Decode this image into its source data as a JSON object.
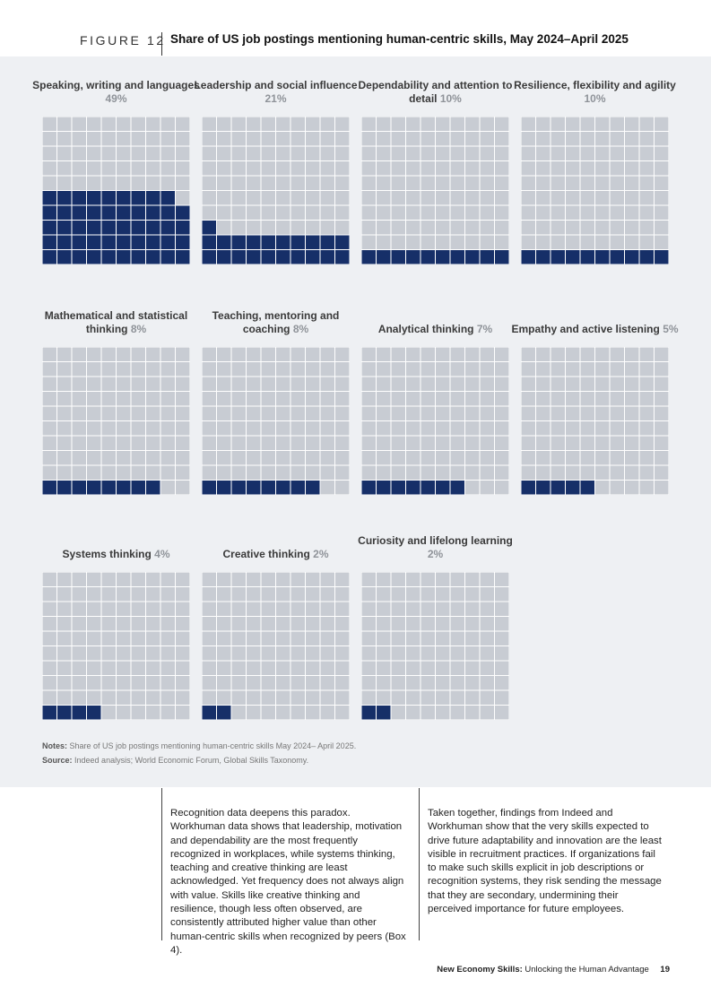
{
  "figure": {
    "label": "FIGURE 12",
    "title": "Share of US job postings mentioning human-centric skills, May 2024–April 2025"
  },
  "chart_data": {
    "type": "waffle",
    "grid": {
      "rows": 10,
      "cols": 10,
      "fill_order": "bottom-up, left-to-right"
    },
    "colors": {
      "filled": "#162f68",
      "empty": "#c8ccd3"
    },
    "series": [
      {
        "name": "Speaking, writing and languages",
        "value": 49,
        "label": "49%"
      },
      {
        "name": "Leadership and social influence",
        "value": 21,
        "label": "21%"
      },
      {
        "name": "Dependability and attention to detail",
        "value": 10,
        "label": "10%"
      },
      {
        "name": "Resilience, flexibility and agility",
        "value": 10,
        "label": "10%"
      },
      {
        "name": "Mathematical and statistical thinking",
        "value": 8,
        "label": "8%"
      },
      {
        "name": "Teaching, mentoring and coaching",
        "value": 8,
        "label": "8%"
      },
      {
        "name": "Analytical thinking",
        "value": 7,
        "label": "7%"
      },
      {
        "name": "Empathy and active listening",
        "value": 5,
        "label": "5%"
      },
      {
        "name": "Systems thinking",
        "value": 4,
        "label": "4%"
      },
      {
        "name": "Creative thinking",
        "value": 2,
        "label": "2%"
      },
      {
        "name": "Curiosity and lifelong learning",
        "value": 2,
        "label": "2%"
      }
    ]
  },
  "notes": {
    "notes_label": "Notes:",
    "notes_text": "Share of US job postings mentioning human-centric skills May 2024– April 2025.",
    "source_label": "Source:",
    "source_text": "Indeed analysis; World Economic Forum, Global Skills Taxonomy."
  },
  "body": {
    "col1": "Recognition data deepens this paradox. Workhuman data shows that leadership, motivation and dependability are the most frequently recognized in workplaces, while systems thinking, teaching and creative thinking are least acknowledged. Yet frequency does not always align with value. Skills like creative thinking and resilience, though less often observed, are consistently attributed higher value than other human-centric skills when recognized by peers (Box 4).",
    "col2": "Taken together, findings from Indeed and Workhuman show that the very skills expected to drive future adaptability and innovation are the least visible in recruitment practices. If organizations fail to make such skills explicit in job descriptions or recognition systems, they risk sending the message that they are secondary, undermining their perceived importance for future employees."
  },
  "footer": {
    "report": "New Economy Skills:",
    "subtitle": "Unlocking the Human Advantage",
    "page": "19"
  }
}
